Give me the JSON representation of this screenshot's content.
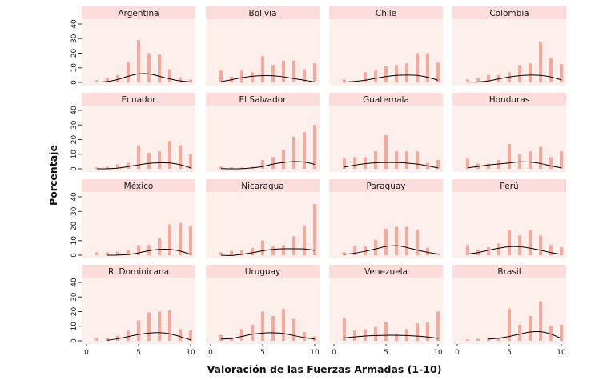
{
  "chart_data": {
    "type": "bar",
    "subtype": "faceted-bar-with-density-line",
    "title": "",
    "xlabel": "Valoración de las Fuerzas Armadas (1-10)",
    "ylabel": "Porcentaje",
    "xlim": [
      0,
      10
    ],
    "ylim": [
      0,
      40
    ],
    "x_ticks": [
      0,
      5,
      10
    ],
    "y_ticks": [
      0,
      10,
      20,
      30,
      40
    ],
    "grid": false,
    "legend": "none",
    "colors": {
      "bar": "#F8A89A",
      "line": "#000000",
      "panel_bg": "#FDEFEC",
      "strip_bg": "#FDDCDC"
    },
    "categories": [
      1,
      2,
      3,
      4,
      5,
      6,
      7,
      8,
      9,
      10
    ],
    "panels": [
      {
        "name": "Argentina",
        "values": [
          1.5,
          3,
          5,
          14,
          29,
          20,
          19,
          9,
          3.5,
          2
        ],
        "curve": [
          0.2,
          0.6,
          2,
          4.2,
          5.8,
          5.8,
          4.2,
          2.4,
          1,
          0.3
        ]
      },
      {
        "name": "Bolivia",
        "values": [
          8,
          4,
          8,
          7,
          18,
          12,
          15,
          15,
          9,
          13
        ],
        "curve": [
          0.5,
          1.8,
          3.2,
          4.2,
          4.6,
          4.5,
          3.8,
          2.6,
          1.5,
          0.3
        ]
      },
      {
        "name": "Chile",
        "values": [
          2,
          0,
          7,
          8,
          11,
          12,
          13,
          20,
          20,
          13.5
        ],
        "curve": [
          0.2,
          0.7,
          1.5,
          2.8,
          4,
          4.8,
          5,
          4.8,
          3.5,
          1.5
        ]
      },
      {
        "name": "Colombia",
        "values": [
          2,
          3,
          5,
          5,
          7,
          12,
          13,
          28,
          17,
          12.5
        ],
        "curve": [
          0.2,
          0.3,
          1,
          2.4,
          3.7,
          4.6,
          5,
          4.8,
          3.7,
          1.7
        ]
      },
      {
        "name": "Ecuador",
        "values": [
          1,
          1.5,
          3,
          4,
          16,
          11,
          12,
          19,
          16,
          10
        ],
        "curve": [
          0,
          0.1,
          0.5,
          1.5,
          2.7,
          3.7,
          4.1,
          4,
          2.8,
          0.6
        ]
      },
      {
        "name": "El Salvador",
        "values": [
          1.5,
          1,
          1,
          1.5,
          6,
          8,
          13,
          22,
          25,
          30
        ],
        "curve": [
          0.2,
          0,
          0.1,
          0.6,
          1.6,
          3.2,
          4.3,
          4.9,
          4.6,
          3
        ]
      },
      {
        "name": "Guatemala",
        "values": [
          7,
          8,
          8,
          12,
          23,
          12,
          12,
          12,
          4,
          6
        ],
        "curve": [
          1.2,
          2.5,
          3.5,
          4.1,
          4.3,
          4.3,
          3.9,
          3.2,
          2,
          0.6
        ]
      },
      {
        "name": "Honduras",
        "values": [
          7,
          3.5,
          3.5,
          6,
          17,
          10,
          12,
          15,
          8,
          12
        ],
        "curve": [
          0.7,
          1.6,
          2.6,
          3.3,
          4,
          4.7,
          4.6,
          3.6,
          2,
          0.6
        ]
      },
      {
        "name": "México",
        "values": [
          2,
          2,
          2.5,
          3.5,
          7,
          7,
          11.5,
          21,
          22,
          20
        ],
        "curve": [
          null,
          0,
          0.1,
          0.5,
          1.6,
          3.1,
          4,
          4,
          2.8,
          0.6
        ]
      },
      {
        "name": "Nicaragua",
        "values": [
          2,
          3,
          3.5,
          5,
          10,
          6,
          7,
          13,
          20,
          35
        ],
        "curve": [
          0,
          -0.2,
          0.6,
          1.7,
          3,
          4,
          4.4,
          4.4,
          4.3,
          3.3
        ]
      },
      {
        "name": "Paraguay",
        "values": [
          2,
          6,
          6,
          10.5,
          18,
          19.5,
          19.5,
          17.5,
          5,
          1
        ],
        "curve": [
          0.6,
          1.4,
          2.7,
          4.3,
          6,
          6.5,
          5.3,
          3.5,
          2,
          0.8
        ]
      },
      {
        "name": "Perú",
        "values": [
          7,
          4,
          5.5,
          8,
          17,
          13.5,
          17,
          13.5,
          7,
          5.5
        ],
        "curve": [
          0.8,
          1.8,
          3.4,
          4.8,
          5.8,
          5.8,
          4.8,
          3.4,
          1.8,
          0.6
        ]
      },
      {
        "name": "R. Dominicana",
        "values": [
          2,
          2,
          3.5,
          7,
          14,
          19.5,
          20,
          21,
          8,
          7
        ],
        "curve": [
          null,
          0.4,
          1.4,
          2.9,
          4.3,
          5.3,
          5.6,
          4.8,
          2.9,
          0.6
        ]
      },
      {
        "name": "Uruguay",
        "values": [
          4,
          2.5,
          8,
          11,
          20,
          17,
          22,
          15,
          6,
          3
        ],
        "curve": [
          1.2,
          1.6,
          3,
          4.5,
          5.3,
          5.5,
          5,
          3.6,
          2.2,
          1.2
        ]
      },
      {
        "name": "Venezuela",
        "values": [
          15.5,
          7,
          8,
          9.5,
          13,
          5,
          8,
          12,
          12.5,
          20
        ],
        "curve": [
          2,
          2.7,
          3.3,
          3.6,
          3.8,
          3.8,
          3.6,
          3.2,
          2.6,
          1.7
        ]
      },
      {
        "name": "Brasil",
        "values": [
          1,
          1.5,
          2,
          2,
          22,
          11,
          17,
          27,
          10,
          11
        ],
        "curve": [
          null,
          null,
          1.2,
          1.8,
          3,
          4.6,
          6,
          6.2,
          4.6,
          1.6
        ]
      }
    ]
  }
}
